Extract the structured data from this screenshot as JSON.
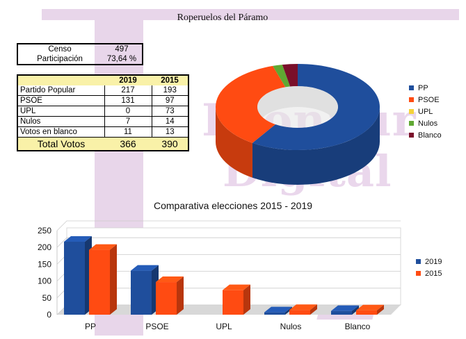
{
  "title": "Roperuelos del Páramo",
  "watermark": {
    "line1": "LeónSur",
    "line2": "Digital"
  },
  "censo": {
    "rows": [
      {
        "label": "Censo",
        "value": "497"
      },
      {
        "label": "Participación",
        "value": "73,64 %"
      }
    ]
  },
  "results": {
    "headers": [
      "",
      "2019",
      "2015"
    ],
    "rows": [
      {
        "label": "Partido Popular",
        "v2019": "217",
        "v2015": "193"
      },
      {
        "label": "PSOE",
        "v2019": "131",
        "v2015": "97"
      },
      {
        "label": "UPL",
        "v2019": "0",
        "v2015": "73"
      },
      {
        "label": "Nulos",
        "v2019": "7",
        "v2015": "14"
      },
      {
        "label": "Votos en blanco",
        "v2019": "11",
        "v2015": "13"
      }
    ],
    "total": {
      "label": "Total Votos",
      "v2019": "366",
      "v2015": "390"
    }
  },
  "colors": {
    "PP": "#1f4e9c",
    "PSOE": "#ff4b12",
    "UPL": "#f4d23a",
    "Nulos": "#5fa832",
    "Blanco": "#7a0f2a",
    "s2019": "#1f4e9c",
    "s2015": "#ff4b12"
  },
  "chart_data": [
    {
      "type": "pie",
      "title": "",
      "categories": [
        "PP",
        "PSOE",
        "UPL",
        "Nulos",
        "Blanco"
      ],
      "values": [
        217,
        131,
        0,
        7,
        11
      ],
      "legend": "right"
    },
    {
      "type": "bar",
      "title": "Comparativa elecciones 2015 - 2019",
      "categories": [
        "PP",
        "PSOE",
        "UPL",
        "Nulos",
        "Blanco"
      ],
      "series": [
        {
          "name": "2019",
          "values": [
            217,
            131,
            0,
            7,
            11
          ]
        },
        {
          "name": "2015",
          "values": [
            193,
            97,
            73,
            14,
            13
          ]
        }
      ],
      "yticks": [
        "0",
        "50",
        "100",
        "150",
        "200",
        "250"
      ],
      "ylim": [
        0,
        250
      ],
      "grid": true,
      "legend": "right"
    }
  ]
}
